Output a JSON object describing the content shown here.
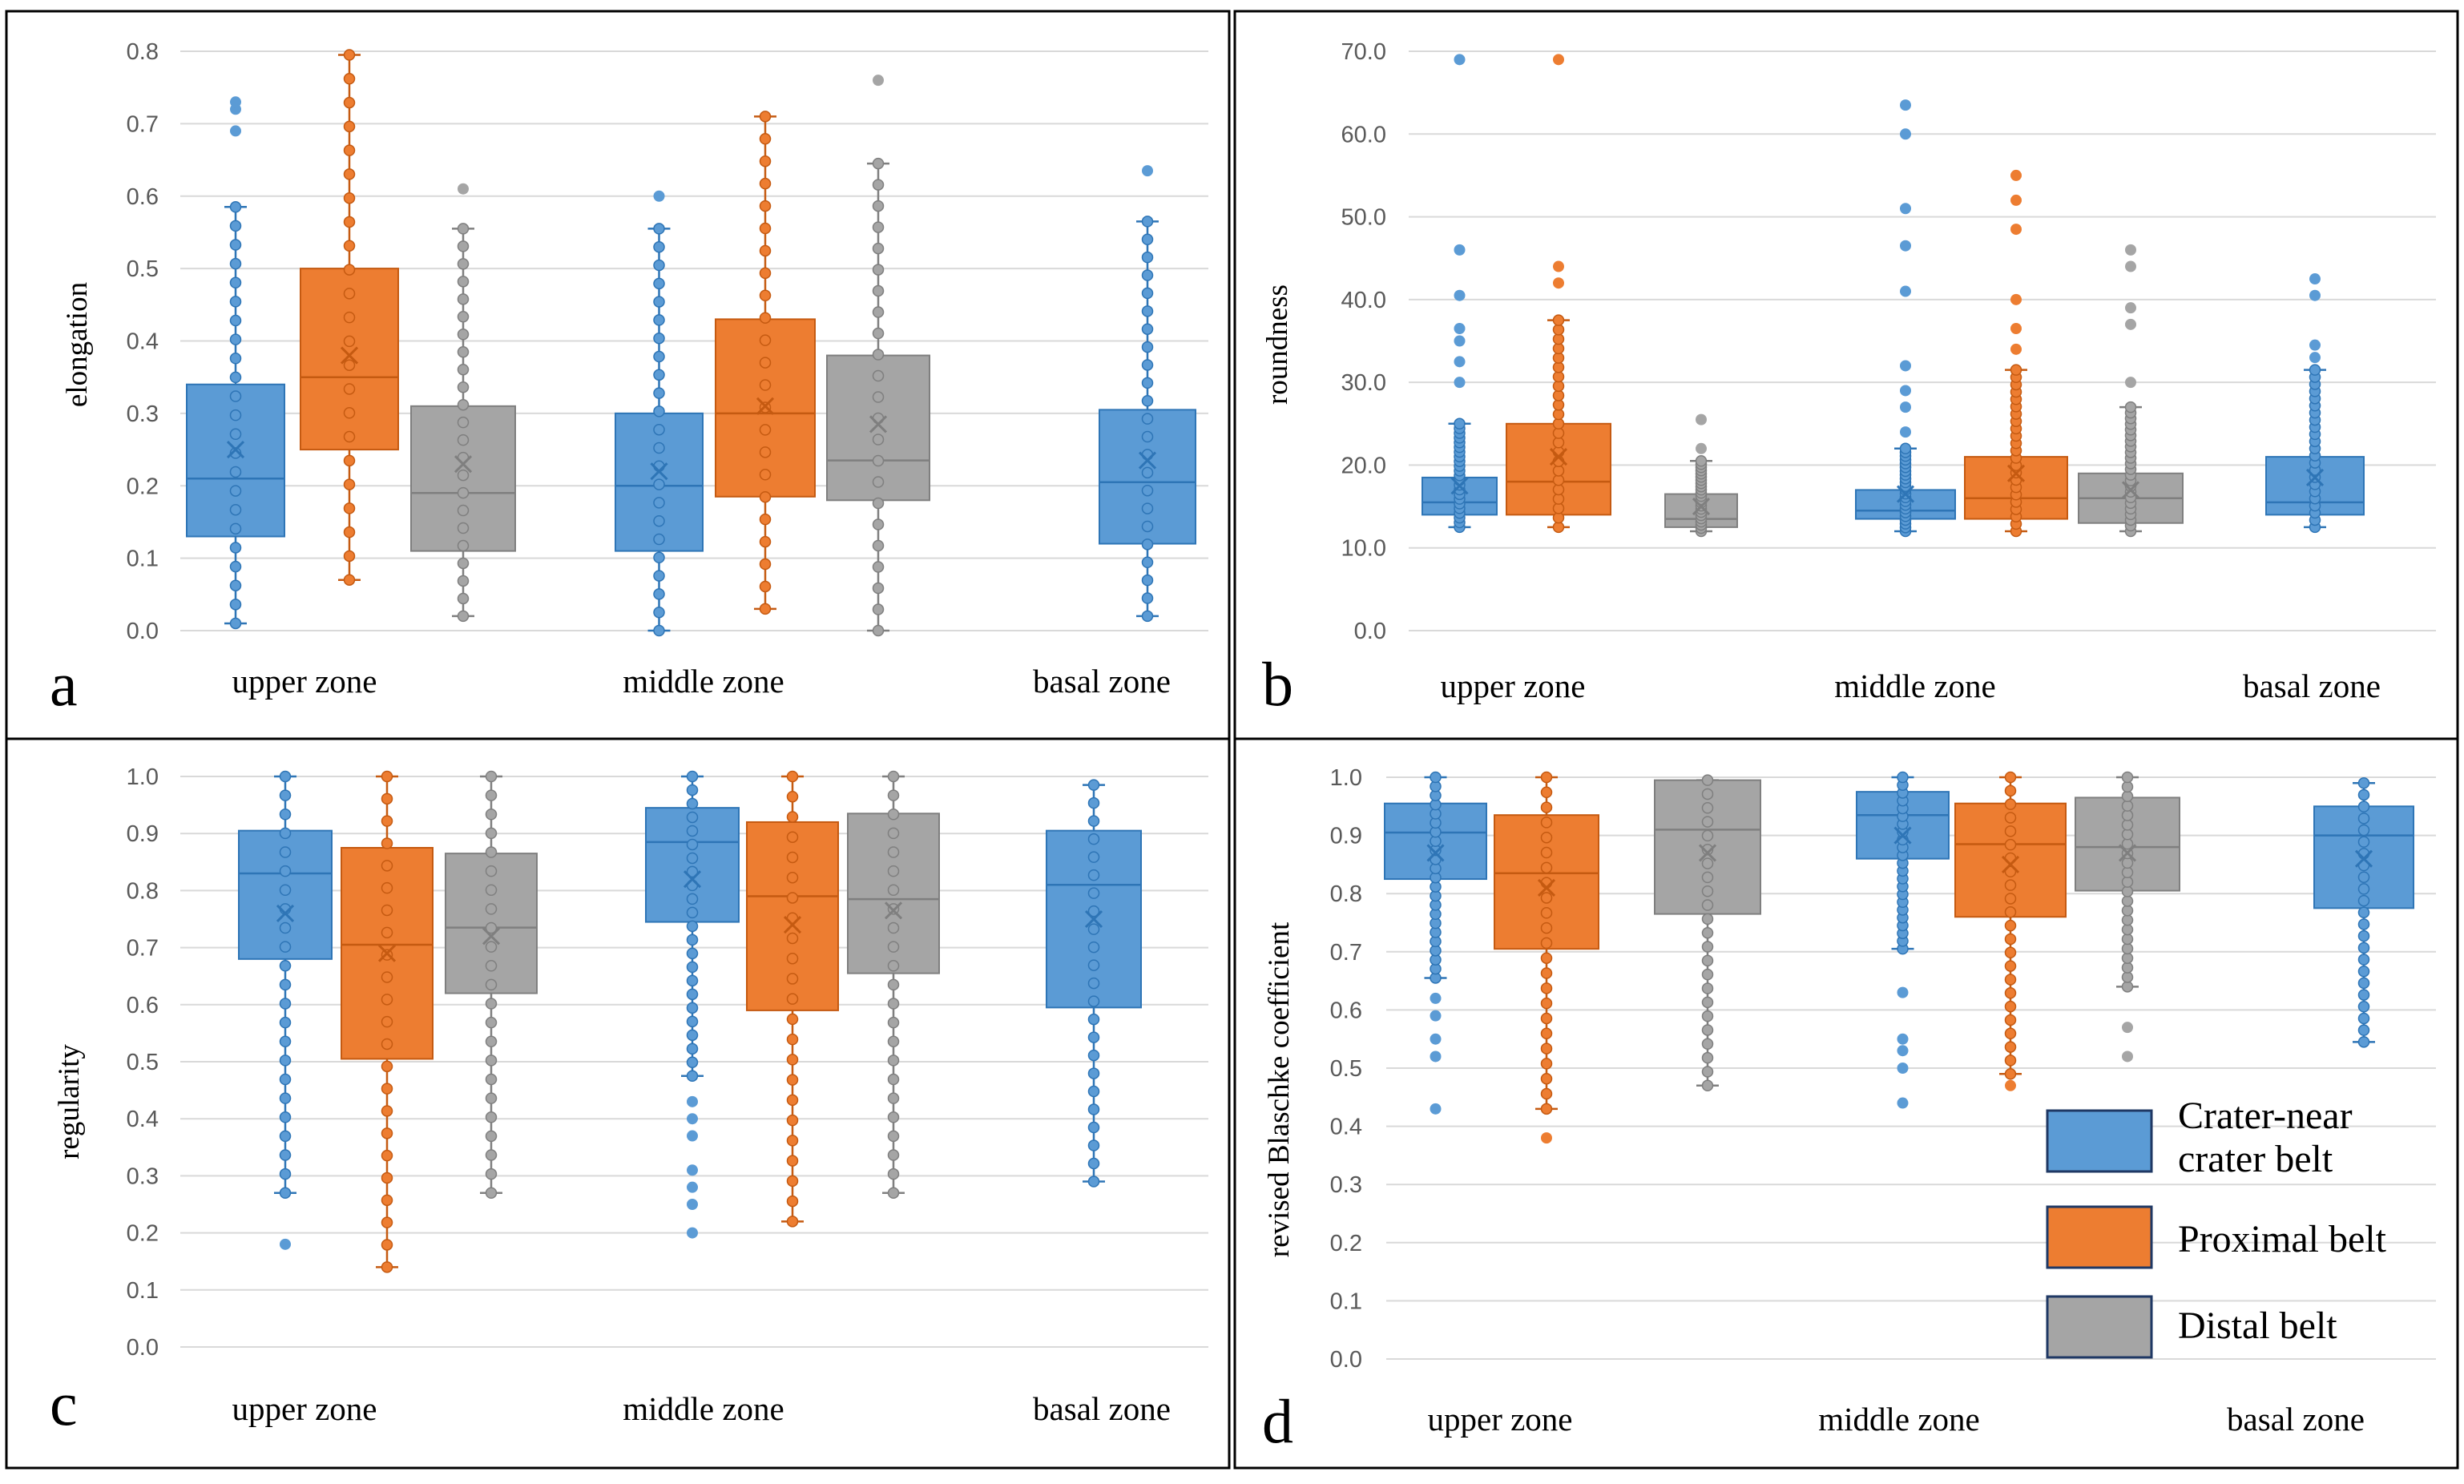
{
  "colors": {
    "crater": "#5B9BD5",
    "crater_edge": "#2E75B6",
    "proximal": "#ED7D31",
    "proximal_edge": "#C55A11",
    "distal": "#A5A5A5",
    "distal_edge": "#7F7F7F"
  },
  "legend": {
    "crater_line1": "Crater-near",
    "crater_line2": "crater belt",
    "proximal": "Proximal belt",
    "distal": "Distal belt"
  },
  "chart_data": [
    {
      "panel": "a",
      "type": "box",
      "ylabel": "elongation",
      "ylim": [
        0,
        0.8
      ],
      "ticks": [
        "0.0",
        "0.1",
        "0.2",
        "0.3",
        "0.4",
        "0.5",
        "0.6",
        "0.7",
        "0.8"
      ],
      "categories": [
        "upper zone",
        "middle zone",
        "basal zone"
      ],
      "boxes": [
        {
          "zone": 0,
          "series": "crater",
          "min": 0.01,
          "q1": 0.13,
          "median": 0.21,
          "q3": 0.34,
          "max": 0.585,
          "mean": 0.25,
          "outliers": [
            0.69,
            0.72,
            0.73
          ]
        },
        {
          "zone": 0,
          "series": "proximal",
          "min": 0.07,
          "q1": 0.25,
          "median": 0.35,
          "q3": 0.5,
          "max": 0.795,
          "mean": 0.38,
          "outliers": []
        },
        {
          "zone": 0,
          "series": "distal",
          "min": 0.02,
          "q1": 0.11,
          "median": 0.19,
          "q3": 0.31,
          "max": 0.555,
          "mean": 0.23,
          "outliers": [
            0.61
          ]
        },
        {
          "zone": 1,
          "series": "crater",
          "min": 0.0,
          "q1": 0.11,
          "median": 0.2,
          "q3": 0.3,
          "max": 0.555,
          "mean": 0.22,
          "outliers": [
            0.6
          ]
        },
        {
          "zone": 1,
          "series": "proximal",
          "min": 0.03,
          "q1": 0.185,
          "median": 0.3,
          "q3": 0.43,
          "max": 0.71,
          "mean": 0.31,
          "outliers": []
        },
        {
          "zone": 1,
          "series": "distal",
          "min": 0.0,
          "q1": 0.18,
          "median": 0.235,
          "q3": 0.38,
          "max": 0.645,
          "mean": 0.285,
          "outliers": [
            0.76
          ]
        },
        {
          "zone": 2,
          "series": "crater",
          "min": 0.02,
          "q1": 0.12,
          "median": 0.205,
          "q3": 0.305,
          "max": 0.565,
          "mean": 0.235,
          "outliers": [
            0.635
          ]
        }
      ]
    },
    {
      "panel": "b",
      "type": "box",
      "ylabel": "roundness",
      "ylim": [
        0,
        70
      ],
      "ticks": [
        "0.0",
        "10.0",
        "20.0",
        "30.0",
        "40.0",
        "50.0",
        "60.0",
        "70.0"
      ],
      "categories": [
        "upper zone",
        "middle zone",
        "basal zone"
      ],
      "boxes": [
        {
          "zone": 0,
          "series": "crater",
          "min": 12.5,
          "q1": 14.0,
          "median": 15.5,
          "q3": 18.5,
          "max": 25.0,
          "mean": 17.5,
          "outliers": [
            30.0,
            32.5,
            35.0,
            36.5,
            40.5,
            46.0,
            69.0
          ]
        },
        {
          "zone": 0,
          "series": "proximal",
          "min": 12.5,
          "q1": 14.0,
          "median": 18.0,
          "q3": 25.0,
          "max": 37.5,
          "mean": 21.0,
          "outliers": [
            42.0,
            44.0,
            69.0
          ]
        },
        {
          "zone": 0,
          "series": "distal",
          "min": 12.0,
          "q1": 12.5,
          "median": 13.5,
          "q3": 16.5,
          "max": 20.5,
          "mean": 15.0,
          "outliers": [
            22.0,
            25.5
          ]
        },
        {
          "zone": 1,
          "series": "crater",
          "min": 12.0,
          "q1": 13.5,
          "median": 14.5,
          "q3": 17.0,
          "max": 22.0,
          "mean": 16.5,
          "outliers": [
            24.0,
            27.0,
            29.0,
            32.0,
            41.0,
            46.5,
            51.0,
            60.0,
            63.5
          ]
        },
        {
          "zone": 1,
          "series": "proximal",
          "min": 12.0,
          "q1": 13.5,
          "median": 16.0,
          "q3": 21.0,
          "max": 31.5,
          "mean": 19.0,
          "outliers": [
            34.0,
            36.5,
            40.0,
            48.5,
            52.0,
            55.0
          ]
        },
        {
          "zone": 1,
          "series": "distal",
          "min": 12.0,
          "q1": 13.0,
          "median": 16.0,
          "q3": 19.0,
          "max": 27.0,
          "mean": 17.0,
          "outliers": [
            30.0,
            37.0,
            39.0,
            44.0,
            46.0
          ]
        },
        {
          "zone": 2,
          "series": "crater",
          "min": 12.5,
          "q1": 14.0,
          "median": 15.5,
          "q3": 21.0,
          "max": 31.5,
          "mean": 18.5,
          "outliers": [
            33.0,
            34.5,
            40.5,
            42.5
          ]
        }
      ]
    },
    {
      "panel": "c",
      "type": "box",
      "ylabel": "regularity",
      "ylim": [
        0,
        1.0
      ],
      "ticks": [
        "0.0",
        "0.1",
        "0.2",
        "0.3",
        "0.4",
        "0.5",
        "0.6",
        "0.7",
        "0.8",
        "0.9",
        "1.0"
      ],
      "categories": [
        "upper zone",
        "middle zone",
        "basal zone"
      ],
      "boxes": [
        {
          "zone": 0,
          "series": "crater",
          "min": 0.27,
          "q1": 0.68,
          "median": 0.83,
          "q3": 0.905,
          "max": 1.0,
          "mean": 0.76,
          "outliers": [
            0.18
          ]
        },
        {
          "zone": 0,
          "series": "proximal",
          "min": 0.14,
          "q1": 0.505,
          "median": 0.705,
          "q3": 0.875,
          "max": 1.0,
          "mean": 0.69,
          "outliers": []
        },
        {
          "zone": 0,
          "series": "distal",
          "min": 0.27,
          "q1": 0.62,
          "median": 0.735,
          "q3": 0.865,
          "max": 1.0,
          "mean": 0.72,
          "outliers": []
        },
        {
          "zone": 1,
          "series": "crater",
          "min": 0.475,
          "q1": 0.745,
          "median": 0.885,
          "q3": 0.945,
          "max": 1.0,
          "mean": 0.82,
          "outliers": [
            0.2,
            0.25,
            0.28,
            0.31,
            0.37,
            0.4,
            0.43
          ]
        },
        {
          "zone": 1,
          "series": "proximal",
          "min": 0.22,
          "q1": 0.59,
          "median": 0.79,
          "q3": 0.92,
          "max": 1.0,
          "mean": 0.74,
          "outliers": []
        },
        {
          "zone": 1,
          "series": "distal",
          "min": 0.27,
          "q1": 0.655,
          "median": 0.785,
          "q3": 0.935,
          "max": 1.0,
          "mean": 0.765,
          "outliers": []
        },
        {
          "zone": 2,
          "series": "crater",
          "min": 0.29,
          "q1": 0.595,
          "median": 0.81,
          "q3": 0.905,
          "max": 0.985,
          "mean": 0.75,
          "outliers": []
        }
      ]
    },
    {
      "panel": "d",
      "type": "box",
      "ylabel": "revised Blaschke coefficient",
      "ylim": [
        0,
        1.0
      ],
      "ticks": [
        "0.0",
        "0.1",
        "0.2",
        "0.3",
        "0.4",
        "0.5",
        "0.6",
        "0.7",
        "0.8",
        "0.9",
        "1.0"
      ],
      "categories": [
        "upper zone",
        "middle zone",
        "basal zone"
      ],
      "boxes": [
        {
          "zone": 0,
          "series": "crater",
          "min": 0.655,
          "q1": 0.825,
          "median": 0.905,
          "q3": 0.955,
          "max": 1.0,
          "mean": 0.87,
          "outliers": [
            0.43,
            0.52,
            0.55,
            0.59,
            0.62
          ]
        },
        {
          "zone": 0,
          "series": "proximal",
          "min": 0.43,
          "q1": 0.705,
          "median": 0.835,
          "q3": 0.935,
          "max": 1.0,
          "mean": 0.81,
          "outliers": [
            0.38
          ]
        },
        {
          "zone": 0,
          "series": "distal",
          "min": 0.47,
          "q1": 0.765,
          "median": 0.91,
          "q3": 0.995,
          "max": 0.995,
          "mean": 0.87,
          "outliers": []
        },
        {
          "zone": 1,
          "series": "crater",
          "min": 0.705,
          "q1": 0.86,
          "median": 0.935,
          "q3": 0.975,
          "max": 1.0,
          "mean": 0.9,
          "outliers": [
            0.44,
            0.5,
            0.53,
            0.55,
            0.63
          ]
        },
        {
          "zone": 1,
          "series": "proximal",
          "min": 0.49,
          "q1": 0.76,
          "median": 0.885,
          "q3": 0.955,
          "max": 1.0,
          "mean": 0.85,
          "outliers": [
            0.47
          ]
        },
        {
          "zone": 1,
          "series": "distal",
          "min": 0.64,
          "q1": 0.805,
          "median": 0.88,
          "q3": 0.965,
          "max": 1.0,
          "mean": 0.87,
          "outliers": [
            0.52,
            0.57
          ]
        },
        {
          "zone": 2,
          "series": "crater",
          "min": 0.545,
          "q1": 0.775,
          "median": 0.9,
          "q3": 0.95,
          "max": 0.99,
          "mean": 0.86,
          "outliers": []
        }
      ]
    }
  ]
}
